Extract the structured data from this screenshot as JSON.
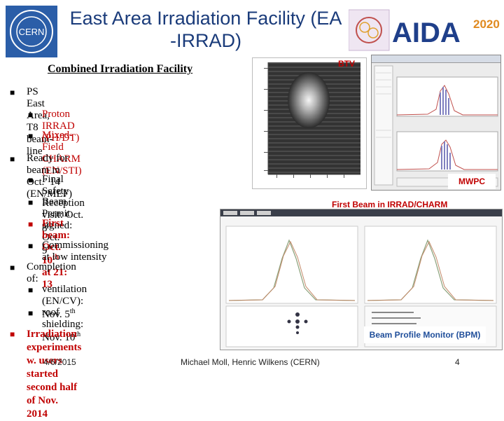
{
  "header": {
    "title_line1": "East Area Irradiation Facility (EA",
    "title_line2": "-IRRAD)",
    "cern_logo_text": "CERN",
    "aida_logo_text": "AIDA",
    "aida_year": "2020"
  },
  "subtitle": "Combined Irradiation Facility",
  "bullets": {
    "b1": "PS East Area, T8 beam-line",
    "b1a": "Proton IRRAD (PH/DT)",
    "b1b": "Mixed-Field CHARM (EN/STI)",
    "b2": "Ready for beam in Oct.’ 14 (EN/MEF)",
    "b2a": "Final Safety Reception visit: Oct. 8",
    "b2a_sup": "th",
    "b2b": "Beam Permit signed: Oct. 9",
    "b2b_sup": "th",
    "b2c_pre": "First beam: Oct. 10",
    "b2c_sup": "th",
    "b2c_post": " at 21: 13",
    "b2d": "Commissioning at low intensity",
    "b3": "Completion of:",
    "b3a": "ventilation (EN/CV): Nov. 5",
    "b3a_sup": "th",
    "b3b": "roof shielding: Nov. 10",
    "b3b_sup": "th",
    "b4_line1": "Irradiation experiments w. users",
    "b4_line2": "started  second half of Nov. 2014"
  },
  "labels": {
    "btv": "BTV",
    "mwpc": "MWPC",
    "first_beam": "First Beam in IRRAD/CHARM",
    "bpm": "Beam Profile Monitor (BPM)"
  },
  "footer": {
    "date": "4/6/2015",
    "authors": "Michael Moll, Henric Wilkens (CERN)",
    "page": "4"
  },
  "colors": {
    "title": "#1a3b7a",
    "accent_red": "#c00000",
    "cern_blue": "#2b5ea8"
  }
}
